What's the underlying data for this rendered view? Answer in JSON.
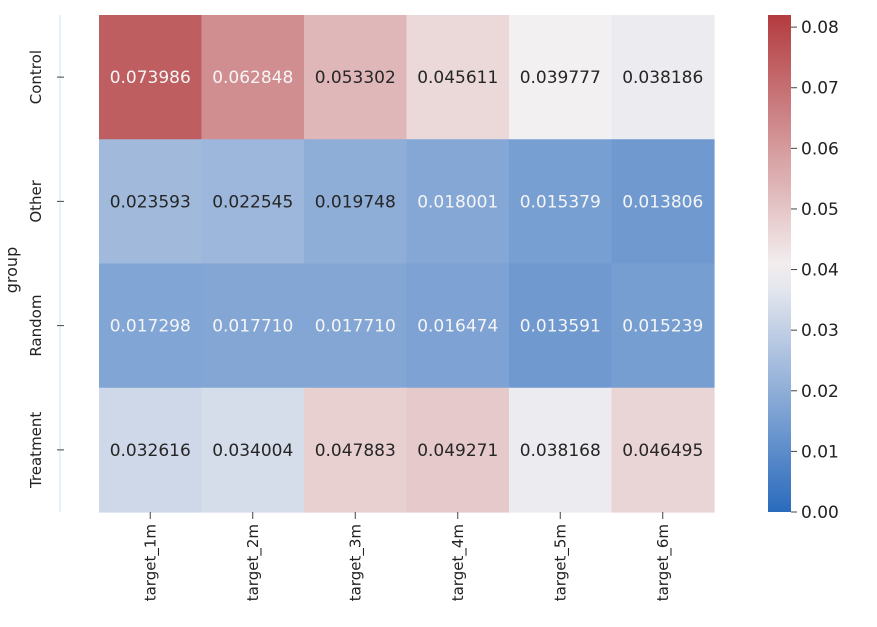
{
  "chart_data": {
    "type": "heatmap",
    "title": "",
    "xlabel": "",
    "ylabel": "group",
    "x_categories": [
      "target_1m",
      "target_2m",
      "target_3m",
      "target_4m",
      "target_5m",
      "target_6m"
    ],
    "y_categories": [
      "Control",
      "Other",
      "Random",
      "Treatment"
    ],
    "values": [
      [
        0.073986,
        0.062848,
        0.053302,
        0.045611,
        0.039777,
        0.038186
      ],
      [
        0.023593,
        0.022545,
        0.019748,
        0.018001,
        0.015379,
        0.013806
      ],
      [
        0.017298,
        0.01771,
        0.01771,
        0.016474,
        0.013591,
        0.015239
      ],
      [
        0.032616,
        0.034004,
        0.047883,
        0.049271,
        0.038168,
        0.046495
      ]
    ],
    "value_labels": [
      [
        "0.073986",
        "0.062848",
        "0.053302",
        "0.045611",
        "0.039777",
        "0.038186"
      ],
      [
        "0.023593",
        "0.022545",
        "0.019748",
        "0.018001",
        "0.015379",
        "0.013806"
      ],
      [
        "0.017298",
        "0.017710",
        "0.017710",
        "0.016474",
        "0.013591",
        "0.015239"
      ],
      [
        "0.032616",
        "0.034004",
        "0.047883",
        "0.049271",
        "0.038168",
        "0.046495"
      ]
    ],
    "colorbar": {
      "min": 0.0,
      "max": 0.082,
      "center": 0.04,
      "ticks": [
        0.0,
        0.01,
        0.02,
        0.03,
        0.04,
        0.05,
        0.06,
        0.07,
        0.08
      ],
      "tick_labels": [
        "0.00",
        "0.01",
        "0.02",
        "0.03",
        "0.04",
        "0.05",
        "0.06",
        "0.07",
        "0.08"
      ],
      "colormap": "diverging blue-white-red",
      "low_color": "#2a6bbd",
      "mid_color": "#f4f1f2",
      "high_color": "#b33b3f"
    },
    "grid": false,
    "legend": "colorbar-right"
  }
}
